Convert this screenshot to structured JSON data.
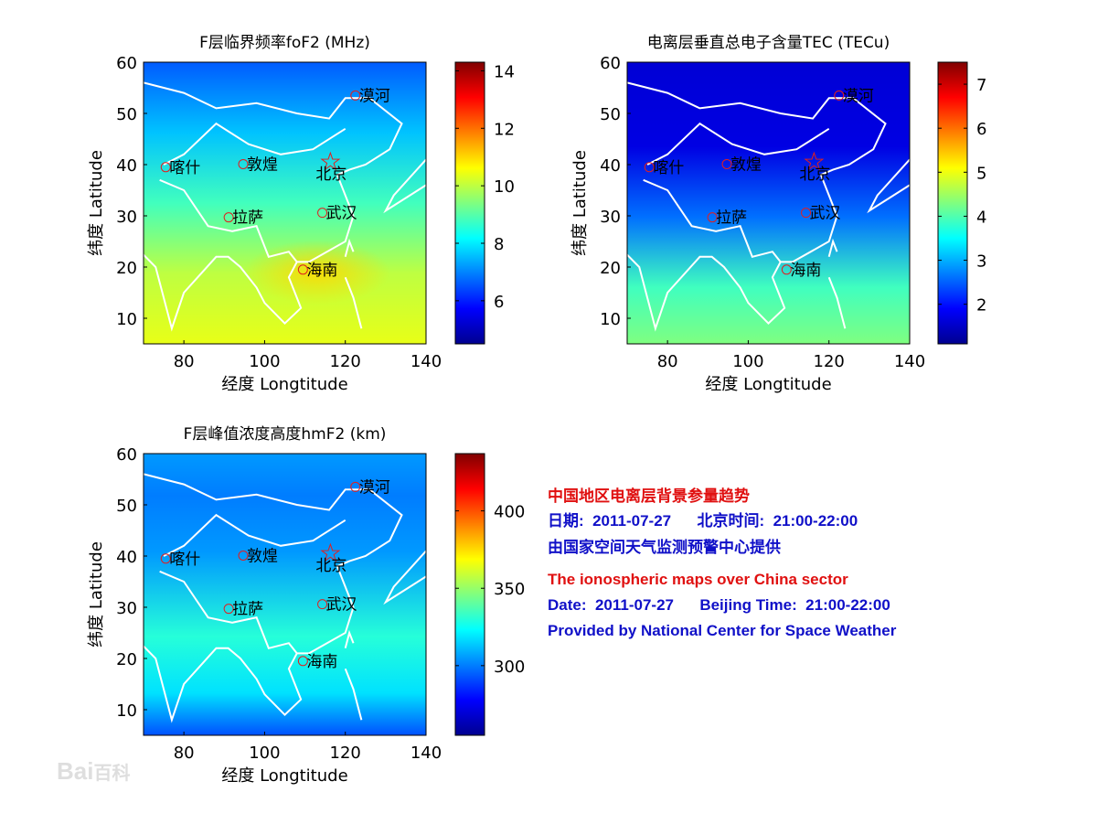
{
  "chart_data": [
    {
      "type": "heatmap",
      "title": "F层临界频率foF2 (MHz)",
      "xlabel": "经度 Longtitude",
      "ylabel": "纬度 Latitude",
      "xlim": [
        70,
        140
      ],
      "ylim": [
        5,
        60
      ],
      "xticks": [
        80,
        100,
        120,
        140
      ],
      "yticks": [
        10,
        20,
        30,
        40,
        50,
        60
      ],
      "colorbar": {
        "range": [
          4.5,
          14.3
        ],
        "ticks": [
          6,
          8,
          10,
          12,
          14
        ],
        "colormap": "jet"
      },
      "field": {
        "north_value": 7,
        "south_value": 10.5,
        "peak": {
          "lon": 113,
          "lat": 19,
          "value": 11
        }
      }
    },
    {
      "type": "heatmap",
      "title": "电离层垂直总电子含量TEC (TECu)",
      "xlabel": "经度 Longtitude",
      "ylabel": "纬度 Latitude",
      "xlim": [
        70,
        140
      ],
      "ylim": [
        5,
        60
      ],
      "xticks": [
        80,
        100,
        120,
        140
      ],
      "yticks": [
        10,
        20,
        30,
        40,
        50,
        60
      ],
      "colorbar": {
        "range": [
          1.1,
          7.5
        ],
        "ticks": [
          2,
          3,
          4,
          5,
          6,
          7
        ],
        "colormap": "jet"
      },
      "field": {
        "north_value": 1.6,
        "south_value": 4.2
      }
    },
    {
      "type": "heatmap",
      "title": "F层峰值浓度高度hmF2 (km)",
      "xlabel": "经度 Longtitude",
      "ylabel": "纬度 Latitude",
      "xlim": [
        70,
        140
      ],
      "ylim": [
        5,
        60
      ],
      "xticks": [
        80,
        100,
        120,
        140
      ],
      "yticks": [
        10,
        20,
        30,
        40,
        50,
        60
      ],
      "colorbar": {
        "range": [
          255,
          437
        ],
        "ticks": [
          300,
          350,
          400
        ],
        "colormap": "jet"
      },
      "field": {
        "north_value": 300,
        "mid_value": 335,
        "south_value": 290
      }
    }
  ],
  "cities": [
    {
      "name": "漠河",
      "lon": 122.5,
      "lat": 53.5,
      "marker": "circle"
    },
    {
      "name": "喀什",
      "lon": 75.5,
      "lat": 39.5,
      "marker": "circle"
    },
    {
      "name": "敦煌",
      "lon": 94.7,
      "lat": 40.1,
      "marker": "circle"
    },
    {
      "name": "北京",
      "lon": 116.3,
      "lat": 40.5,
      "marker": "star"
    },
    {
      "name": "拉萨",
      "lon": 91.1,
      "lat": 29.7,
      "marker": "circle"
    },
    {
      "name": "武汉",
      "lon": 114.3,
      "lat": 30.6,
      "marker": "circle"
    },
    {
      "name": "海南",
      "lon": 109.5,
      "lat": 19.5,
      "marker": "circle"
    }
  ],
  "info": {
    "cn_title": "中国地区电离层背景参量趋势",
    "cn_date": "日期:  2011-07-27      北京时间:  21:00-22:00",
    "cn_provider": "由国家空间天气监测预警中心提供",
    "en_title": "The ionospheric maps over China sector",
    "en_date": "Date:  2011-07-27      Beijing Time:  21:00-22:00",
    "en_provider": "Provided by National Center for Space Weather"
  },
  "watermark": "Bai百科",
  "colors": {
    "info_title": "#e01010",
    "info_text": "#1010c8",
    "coastline": "#ffffff",
    "city_marker": "#e02020"
  }
}
